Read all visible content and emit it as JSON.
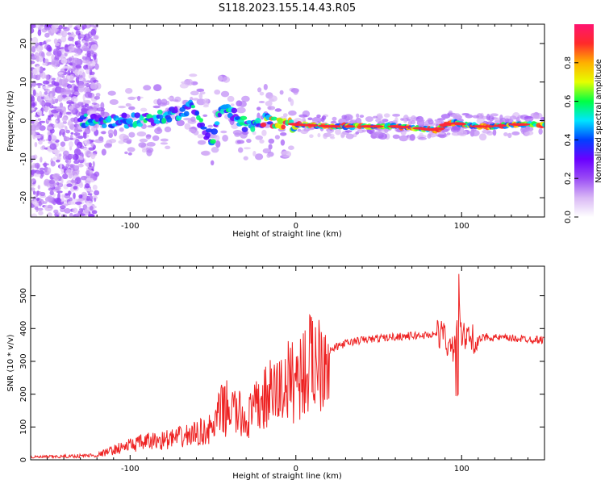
{
  "title": "S118.2023.155.14.43.R05",
  "colors": {
    "snr_line": "#ee2222",
    "spectrogram_colormap": [
      "#ffffff",
      "#d9b8f5",
      "#9a4cf5",
      "#6a00ff",
      "#0040ff",
      "#00e5ff",
      "#00ff44",
      "#e6ff00",
      "#ffb000",
      "#ff2a2a",
      "#ff1470"
    ]
  },
  "chart_data": [
    {
      "type": "heatmap",
      "xlabel": "Height of straight line (km)",
      "ylabel": "Frequency (Hz)",
      "xlim": [
        -160,
        150
      ],
      "ylim": [
        -25,
        25
      ],
      "x_ticks": [
        -100,
        0,
        100
      ],
      "y_ticks": [
        -20,
        -10,
        0,
        10,
        20
      ],
      "grid": false,
      "ridge": {
        "x": [
          -130,
          -110,
          -90,
          -80,
          -70,
          -62,
          -55,
          -50,
          -45,
          -40,
          -35,
          -30,
          -25,
          -20,
          -10,
          0,
          20,
          40,
          60,
          75,
          85,
          90,
          95,
          100,
          110,
          120,
          130,
          140,
          150
        ],
        "freq": [
          0,
          0,
          0,
          1,
          2,
          4,
          -3,
          -5,
          4,
          3,
          0,
          -1,
          -2,
          0,
          -0.5,
          -1,
          -1.5,
          -1.5,
          -1.5,
          -2,
          -2.5,
          -1,
          -0.5,
          -1,
          -1.5,
          -1.5,
          -1,
          -1,
          -1
        ]
      },
      "colorbar": {
        "label": "Normalized spectral amplitude",
        "range": [
          0,
          1
        ],
        "ticks": [
          "0.0",
          "0.2",
          "0.4",
          "0.6",
          "0.8"
        ]
      }
    },
    {
      "type": "line",
      "xlabel": "Height of straight line (km)",
      "ylabel": "SNR (10 * v/v)",
      "xlim": [
        -160,
        150
      ],
      "ylim": [
        0,
        590
      ],
      "x_ticks": [
        -100,
        0,
        100
      ],
      "y_ticks": [
        0,
        100,
        200,
        300,
        400,
        500
      ],
      "grid": false,
      "series": [
        {
          "x": [
            -160,
            -140,
            -120,
            -110,
            -100,
            -90,
            -80,
            -70,
            -60,
            -50,
            -45,
            -40,
            -35,
            -30,
            -25,
            -20,
            -15,
            -10,
            -5,
            0,
            5,
            10,
            15,
            20,
            25,
            30,
            40,
            50,
            60,
            70,
            80,
            85,
            90,
            92,
            95,
            98,
            100,
            105,
            110,
            115,
            120,
            130,
            140,
            150
          ],
          "values": [
            8,
            10,
            14,
            30,
            45,
            55,
            60,
            68,
            80,
            95,
            150,
            160,
            140,
            120,
            150,
            180,
            200,
            210,
            235,
            250,
            270,
            300,
            320,
            330,
            345,
            355,
            365,
            370,
            375,
            378,
            380,
            385,
            380,
            340,
            330,
            480,
            375,
            370,
            365,
            375,
            372,
            370,
            368,
            365
          ]
        }
      ]
    }
  ]
}
